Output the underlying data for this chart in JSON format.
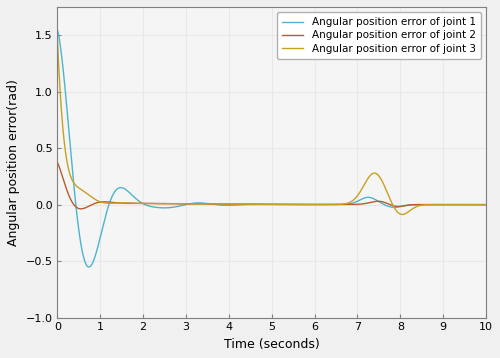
{
  "title": "",
  "xlabel": "Time (seconds)",
  "ylabel": "Angular position error(rad)",
  "xlim": [
    0,
    10
  ],
  "ylim": [
    -1,
    1.75
  ],
  "yticks": [
    -1,
    -0.5,
    0,
    0.5,
    1,
    1.5
  ],
  "xticks": [
    0,
    1,
    2,
    3,
    4,
    5,
    6,
    7,
    8,
    9,
    10
  ],
  "legend": [
    "Angular position error of joint 1",
    "Angular position error of joint 2",
    "Angular position error of joint 3"
  ],
  "colors": [
    "#4db3cf",
    "#b85c2a",
    "#c8a020"
  ],
  "fig_facecolor": "#f0f0f0",
  "ax_facecolor": "#f5f5f5",
  "grid_color": "#e8e8e8",
  "spine_color": "#808080",
  "linewidth": 1.0,
  "legend_fontsize": 7.5,
  "label_fontsize": 9,
  "tick_fontsize": 8
}
